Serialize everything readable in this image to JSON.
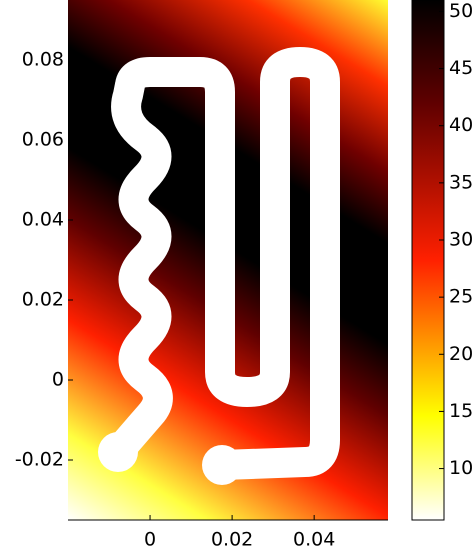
{
  "chart_data": {
    "type": "heatmap",
    "xlim": [
      -0.02,
      0.058
    ],
    "xticks": [
      0,
      0.02,
      0.04
    ],
    "ylim": [
      -0.035,
      0.095
    ],
    "yticks": [
      -0.02,
      0,
      0.02,
      0.04,
      0.06,
      0.08
    ],
    "clim": [
      5.5,
      51
    ],
    "cticks": [
      10,
      15,
      20,
      25,
      30,
      35,
      40,
      45,
      50
    ]
  }
}
